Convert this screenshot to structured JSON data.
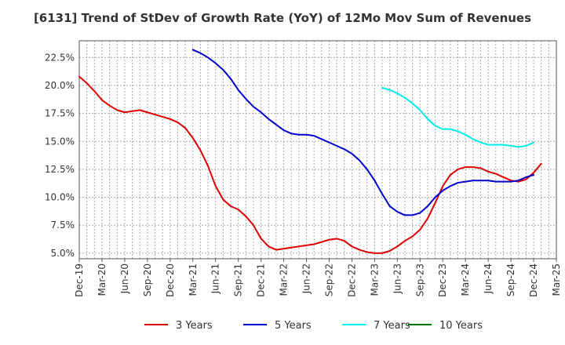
{
  "chart_data": {
    "type": "line",
    "title": "[6131]  Trend of StDev of Growth Rate (YoY) of 12Mo Mov Sum of Revenues",
    "xlabel": "",
    "ylabel": "",
    "ylim": [
      4.5,
      24.0
    ],
    "grid": true,
    "legend_position": "bottom",
    "yticks": [
      5.0,
      7.5,
      10.0,
      12.5,
      15.0,
      17.5,
      20.0,
      22.5
    ],
    "ytick_labels": [
      "5.0%",
      "7.5%",
      "10.0%",
      "12.5%",
      "15.0%",
      "17.5%",
      "20.0%",
      "22.5%"
    ],
    "x_tick_labels": [
      "Dec-19",
      "Mar-20",
      "Jun-20",
      "Sep-20",
      "Dec-20",
      "Mar-21",
      "Jun-21",
      "Sep-21",
      "Dec-21",
      "Mar-22",
      "Jun-22",
      "Sep-22",
      "Dec-22",
      "Mar-23",
      "Jun-23",
      "Sep-23",
      "Dec-23",
      "Mar-24",
      "Jun-24",
      "Sep-24",
      "Dec-24",
      "Mar-25"
    ],
    "x_months": 63,
    "series": [
      {
        "name": "3 Years",
        "color": "#dd0000",
        "start_index": 0,
        "values": [
          20.8,
          20.2,
          19.5,
          18.7,
          18.2,
          17.8,
          17.6,
          17.7,
          17.8,
          17.6,
          17.4,
          17.2,
          17.0,
          16.7,
          16.2,
          15.3,
          14.2,
          12.8,
          11.0,
          9.8,
          9.2,
          8.9,
          8.3,
          7.5,
          6.3,
          5.6,
          5.3,
          5.4,
          5.5,
          5.6,
          5.7,
          5.8,
          6.0,
          6.2,
          6.3,
          6.1,
          5.6,
          5.3,
          5.1,
          5.0,
          5.0,
          5.2,
          5.6,
          6.1,
          6.5,
          7.1,
          8.1,
          9.5,
          11.0,
          12.0,
          12.5,
          12.7,
          12.7,
          12.6,
          12.3,
          12.1,
          11.8,
          11.5,
          11.4,
          11.6,
          12.2,
          13.0
        ]
      },
      {
        "name": "5 Years",
        "color": "#0000cc",
        "start_index": 15,
        "values": [
          23.2,
          22.9,
          22.5,
          22.0,
          21.4,
          20.6,
          19.6,
          18.8,
          18.1,
          17.6,
          17.0,
          16.5,
          16.0,
          15.7,
          15.6,
          15.6,
          15.5,
          15.2,
          14.9,
          14.6,
          14.3,
          13.9,
          13.3,
          12.5,
          11.5,
          10.3,
          9.2,
          8.7,
          8.4,
          8.4,
          8.6,
          9.2,
          10.0,
          10.6,
          11.0,
          11.3,
          11.4,
          11.5,
          11.5,
          11.5,
          11.4,
          11.4,
          11.4,
          11.5,
          11.8,
          12.0
        ]
      },
      {
        "name": "7 Years",
        "color": "#00eeee",
        "start_index": 40,
        "values": [
          19.8,
          19.6,
          19.3,
          18.9,
          18.4,
          17.8,
          17.0,
          16.4,
          16.1,
          16.1,
          15.9,
          15.6,
          15.2,
          14.9,
          14.7,
          14.7,
          14.7,
          14.6,
          14.5,
          14.6,
          14.9
        ]
      },
      {
        "name": "10 Years",
        "color": "#007700",
        "start_index": 0,
        "values": []
      }
    ]
  }
}
